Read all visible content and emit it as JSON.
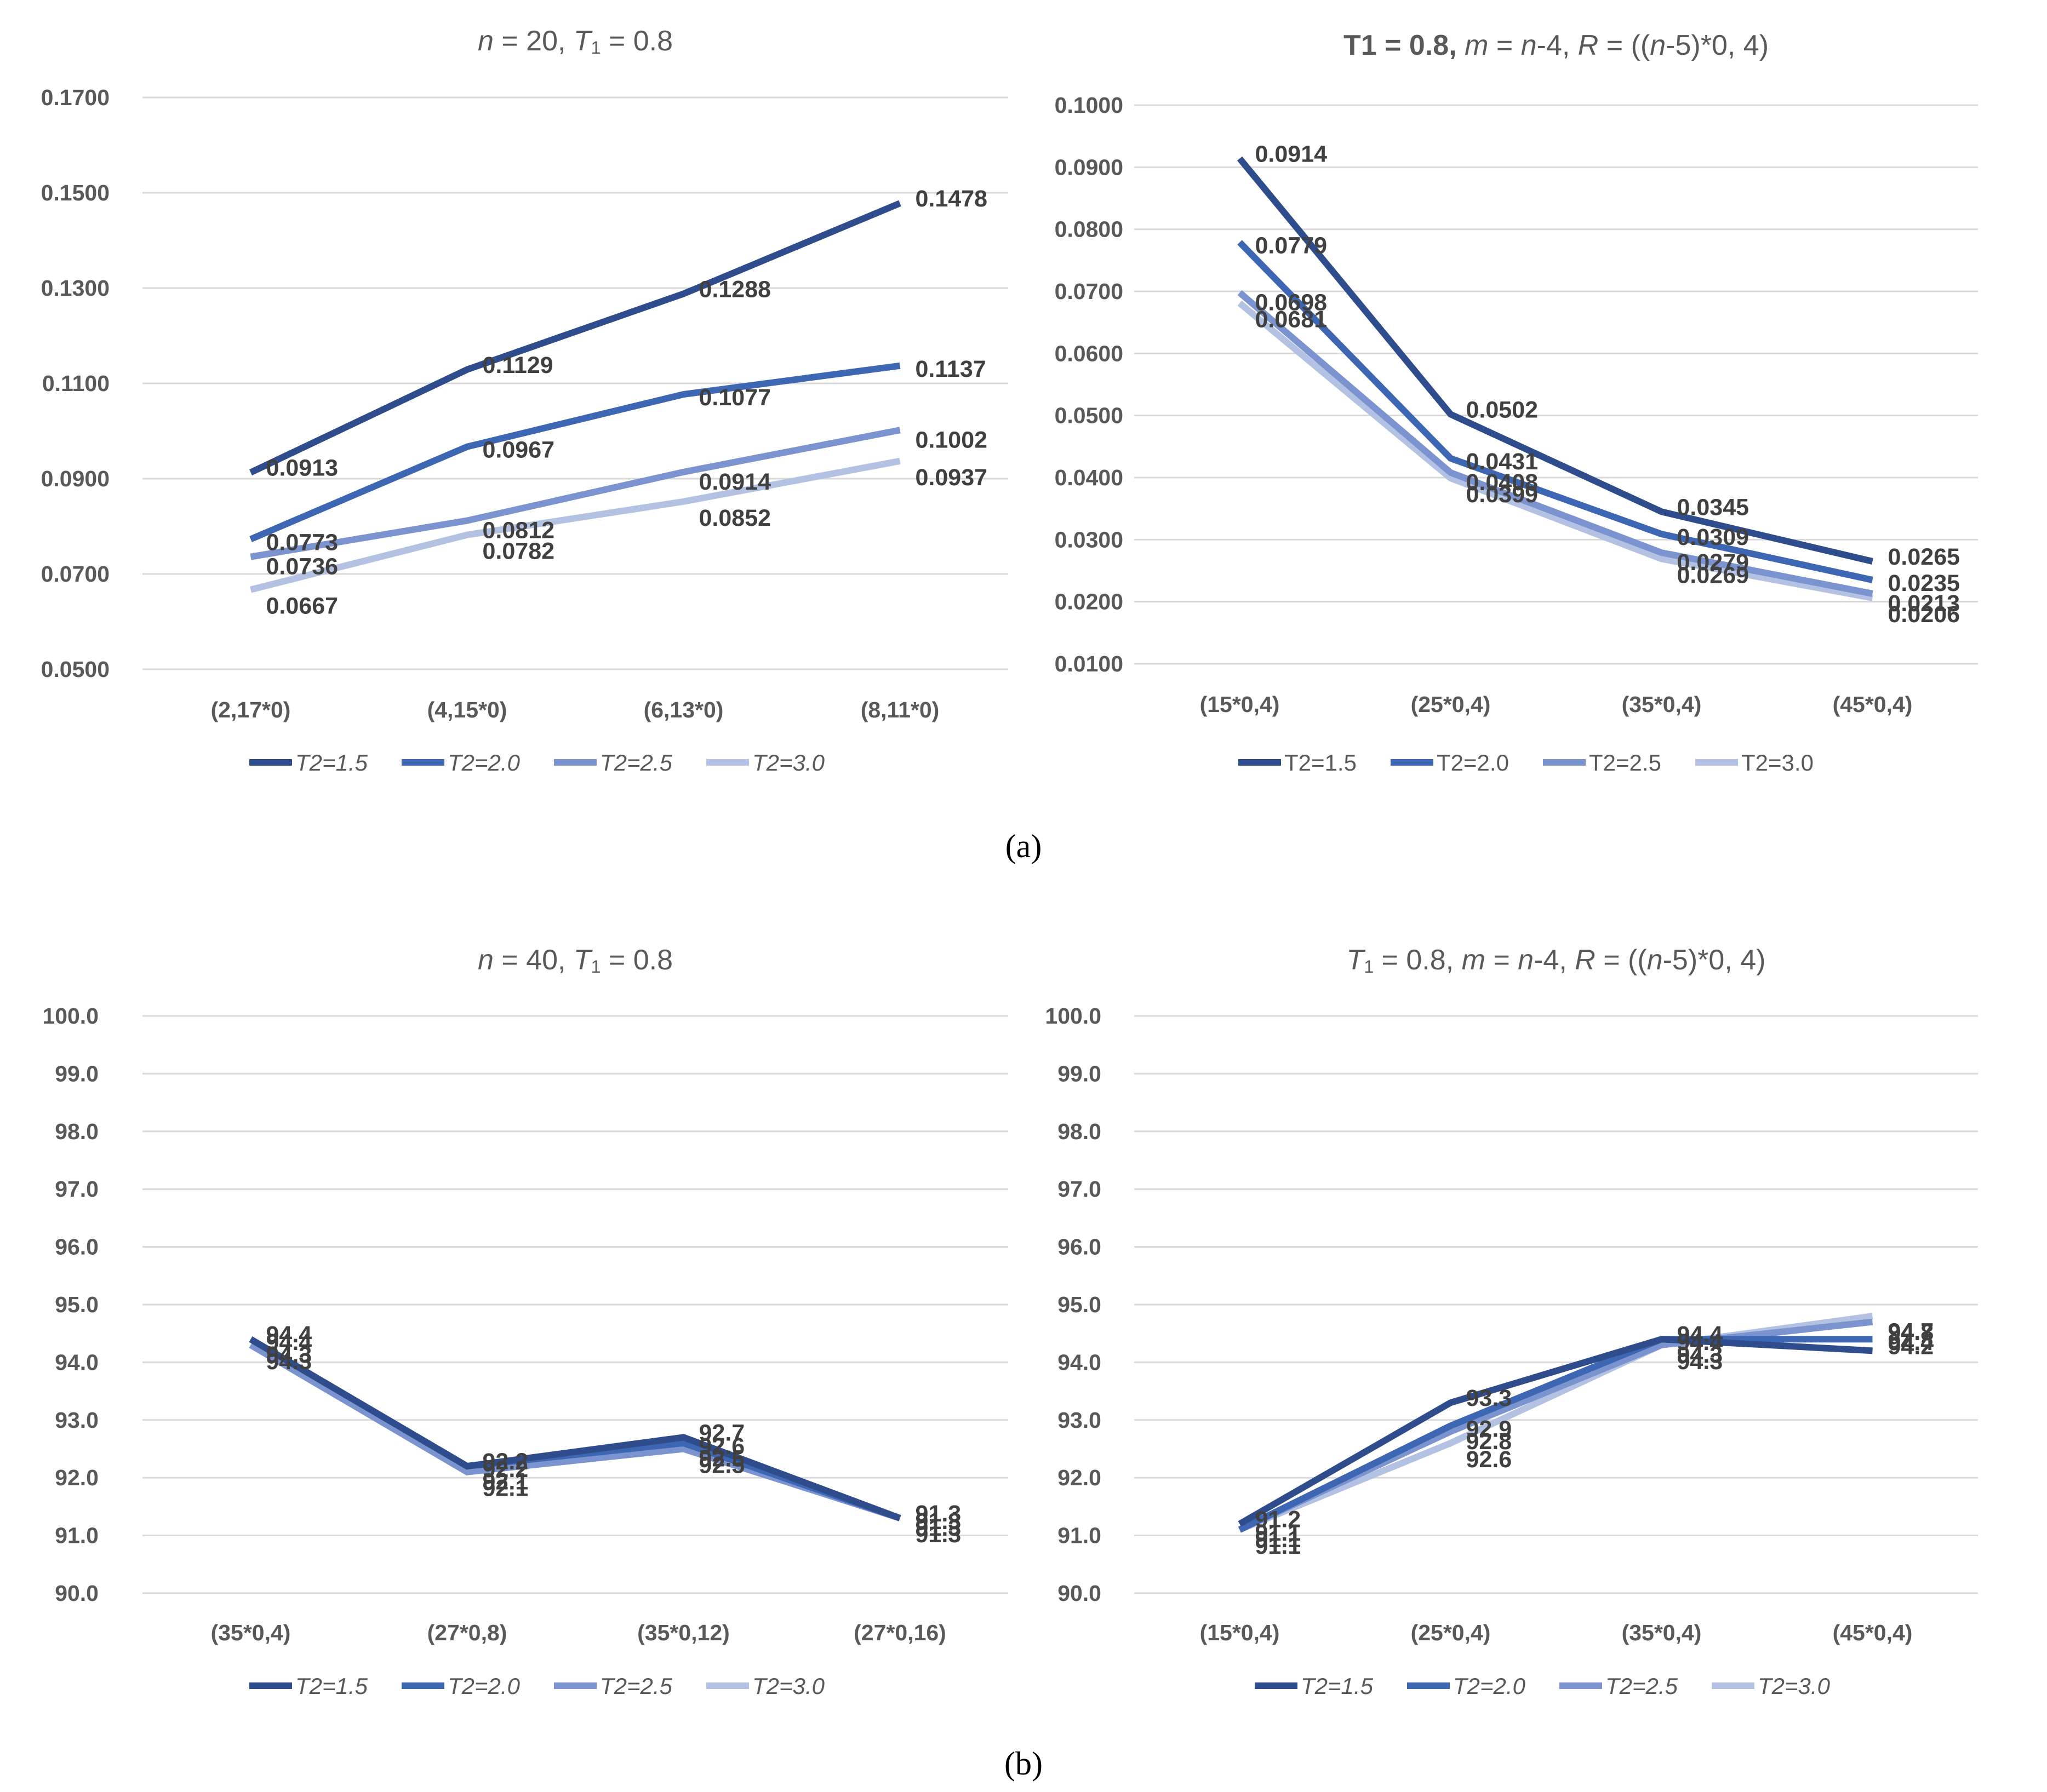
{
  "colors": {
    "T2_1_5": "#2f4d8c",
    "T2_2_0": "#3e67b3",
    "T2_2_5": "#7b93cf",
    "T2_3_0": "#b3c1e3"
  },
  "captions": {
    "a": "(a)",
    "b": "(b)"
  },
  "chart_data": [
    {
      "id": "a-left",
      "type": "line",
      "title_parts": [
        {
          "t": "n",
          "i": true
        },
        {
          "t": " = 20, "
        },
        {
          "t": "T",
          "i": true
        },
        {
          "t": "1",
          "sub": true
        },
        {
          "t": " = 0.8"
        }
      ],
      "categories": [
        "(2,17*0)",
        "(4,15*0)",
        "(6,13*0)",
        "(8,11*0)"
      ],
      "y_ticks": [
        "0.0500",
        "0.0700",
        "0.0900",
        "0.1100",
        "0.1300",
        "0.1500",
        "0.1700"
      ],
      "ylim": [
        0.05,
        0.17
      ],
      "legend_italic": true,
      "series": [
        {
          "name": "T2=1.5",
          "color_key": "T2_1_5",
          "values": [
            0.0913,
            0.1129,
            0.1288,
            0.1478
          ],
          "labels": [
            "0.0913",
            "0.1129",
            "0.1288",
            "0.1478"
          ]
        },
        {
          "name": "T2=2.0",
          "color_key": "T2_2_0",
          "values": [
            0.0773,
            0.0967,
            0.1077,
            0.1137
          ],
          "labels": [
            "0.0773",
            "0.0967",
            "0.1077",
            "0.1137"
          ]
        },
        {
          "name": "T2=2.5",
          "color_key": "T2_2_5",
          "values": [
            0.0736,
            0.0812,
            0.0914,
            0.1002
          ],
          "labels": [
            "0.0736",
            "0.0812",
            "0.0914",
            "0.1002"
          ]
        },
        {
          "name": "T2=3.0",
          "color_key": "T2_3_0",
          "values": [
            0.0667,
            0.0782,
            0.0852,
            0.0937
          ],
          "labels": [
            "0.0667",
            "0.0782",
            "0.0852",
            "0.0937"
          ]
        }
      ]
    },
    {
      "id": "a-right",
      "type": "line",
      "title_parts": [
        {
          "t": "T1 = 0.8, ",
          "b": true
        },
        {
          "t": "m",
          "i": true
        },
        {
          "t": " = "
        },
        {
          "t": "n",
          "i": true
        },
        {
          "t": "-4, "
        },
        {
          "t": "R",
          "i": true
        },
        {
          "t": " = (("
        },
        {
          "t": "n",
          "i": true
        },
        {
          "t": "-5)*0, 4)"
        }
      ],
      "categories": [
        "(15*0,4)",
        "(25*0,4)",
        "(35*0,4)",
        "(45*0,4)"
      ],
      "y_ticks": [
        "0.0100",
        "0.0200",
        "0.0300",
        "0.0400",
        "0.0500",
        "0.0600",
        "0.0700",
        "0.0800",
        "0.0900",
        "0.1000"
      ],
      "ylim": [
        0.01,
        0.1
      ],
      "legend_italic": false,
      "series": [
        {
          "name": "T2=1.5",
          "color_key": "T2_1_5",
          "values": [
            0.0914,
            0.0502,
            0.0345,
            0.0265
          ],
          "labels": [
            "0.0914",
            "0.0502",
            "0.0345",
            "0.0265"
          ]
        },
        {
          "name": "T2=2.0",
          "color_key": "T2_2_0",
          "values": [
            0.0779,
            0.0431,
            0.0309,
            0.0235
          ],
          "labels": [
            "0.0779",
            "0.0431",
            "0.0309",
            "0.0235"
          ]
        },
        {
          "name": "T2=2.5",
          "color_key": "T2_2_5",
          "values": [
            0.0698,
            0.0408,
            0.0279,
            0.0213
          ],
          "labels": [
            "0.0698",
            "0.0408",
            "0.0279",
            "0.0213"
          ]
        },
        {
          "name": "T2=3.0",
          "color_key": "T2_3_0",
          "values": [
            0.0681,
            0.0399,
            0.0269,
            0.0206
          ],
          "labels": [
            "0.0681",
            "0.0399",
            "0.0269",
            "0.0206"
          ]
        }
      ]
    },
    {
      "id": "b-left",
      "type": "line",
      "title_parts": [
        {
          "t": "n",
          "i": true
        },
        {
          "t": " = 40, "
        },
        {
          "t": "T",
          "i": true
        },
        {
          "t": "1",
          "sub": true
        },
        {
          "t": " = 0.8"
        }
      ],
      "categories": [
        "(35*0,4)",
        "(27*0,8)",
        "(35*0,12)",
        "(27*0,16)"
      ],
      "y_ticks": [
        "90.0",
        "91.0",
        "92.0",
        "93.0",
        "94.0",
        "95.0",
        "96.0",
        "97.0",
        "98.0",
        "99.0",
        "100.0"
      ],
      "ylim": [
        90,
        100
      ],
      "legend_italic": true,
      "series": [
        {
          "name": "T2=1.5",
          "color_key": "T2_1_5",
          "values": [
            94.4,
            92.2,
            92.7,
            91.3
          ],
          "labels": [
            "94.4",
            "92.2",
            "92.7",
            "91.3"
          ]
        },
        {
          "name": "T2=2.0",
          "color_key": "T2_2_0",
          "values": [
            94.4,
            92.2,
            92.6,
            91.3
          ],
          "labels": [
            "94.4",
            "92.2",
            "92.6",
            "91.3"
          ]
        },
        {
          "name": "T2=2.5",
          "color_key": "T2_2_5",
          "values": [
            94.3,
            92.1,
            92.5,
            91.3
          ],
          "labels": [
            "94.3",
            "92.1",
            "92.5",
            "91.3"
          ]
        },
        {
          "name": "T2=3.0",
          "color_key": "T2_3_0",
          "values": [
            94.3,
            92.1,
            92.5,
            91.3
          ],
          "labels": [
            "94.3",
            "92.1",
            "92.5",
            "91.3"
          ]
        }
      ]
    },
    {
      "id": "b-right",
      "type": "line",
      "title_parts": [
        {
          "t": "T",
          "i": true
        },
        {
          "t": "1",
          "sub": true
        },
        {
          "t": " = 0.8, "
        },
        {
          "t": "m",
          "i": true
        },
        {
          "t": " = "
        },
        {
          "t": "n",
          "i": true
        },
        {
          "t": "-4, "
        },
        {
          "t": "R",
          "i": true
        },
        {
          "t": " = (("
        },
        {
          "t": "n",
          "i": true
        },
        {
          "t": "-5)*0, 4)"
        }
      ],
      "categories": [
        "(15*0,4)",
        "(25*0,4)",
        "(35*0,4)",
        "(45*0,4)"
      ],
      "y_ticks": [
        "90.0",
        "91.0",
        "92.0",
        "93.0",
        "94.0",
        "95.0",
        "96.0",
        "97.0",
        "98.0",
        "99.0",
        "100.0"
      ],
      "ylim": [
        90,
        100
      ],
      "legend_italic": true,
      "series": [
        {
          "name": "T2=1.5",
          "color_key": "T2_1_5",
          "values": [
            91.2,
            93.3,
            94.4,
            94.2
          ],
          "labels": [
            "91.2",
            "93.3",
            "94.4",
            "94.2"
          ]
        },
        {
          "name": "T2=2.0",
          "color_key": "T2_2_0",
          "values": [
            91.1,
            92.9,
            94.4,
            94.4
          ],
          "labels": [
            "91.1",
            "92.9",
            "94.4",
            "94.4"
          ]
        },
        {
          "name": "T2=2.5",
          "color_key": "T2_2_5",
          "values": [
            91.1,
            92.8,
            94.3,
            94.7
          ],
          "labels": [
            "91.1",
            "92.8",
            "94.3",
            "94.7"
          ]
        },
        {
          "name": "T2=3.0",
          "color_key": "T2_3_0",
          "values": [
            91.1,
            92.6,
            94.3,
            94.8
          ],
          "labels": [
            "91.1",
            "92.6",
            "94.3",
            "94.8"
          ]
        }
      ]
    }
  ]
}
